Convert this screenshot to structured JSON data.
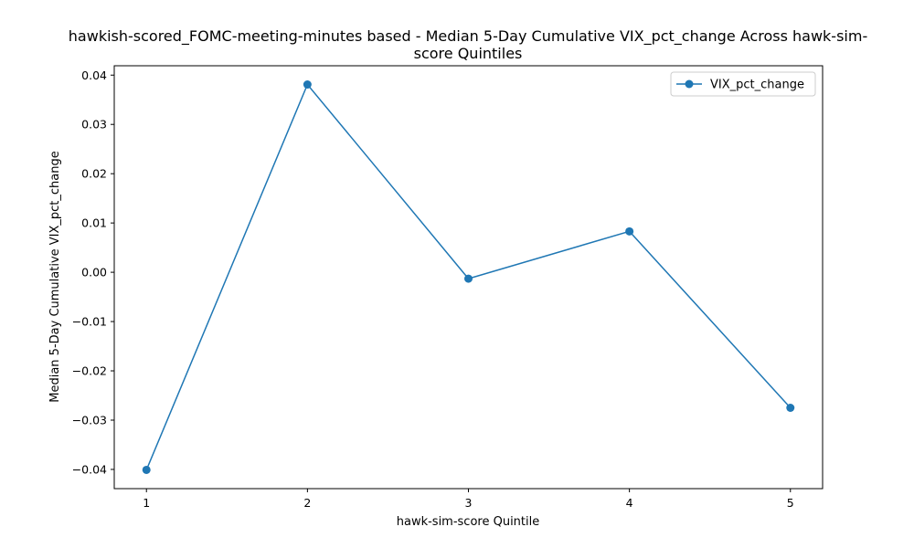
{
  "chart_data": {
    "type": "line",
    "title_lines": [
      "hawkish-scored_FOMC-meeting-minutes based - Median 5-Day Cumulative VIX_pct_change Across hawk-sim-",
      "score Quintiles"
    ],
    "xlabel": "hawk-sim-score Quintile",
    "ylabel": "Median 5-Day Cumulative VIX_pct_change",
    "x": [
      1,
      2,
      3,
      4,
      5
    ],
    "x_tick_labels": [
      "1",
      "2",
      "3",
      "4",
      "5"
    ],
    "xlim": [
      0.8,
      5.2
    ],
    "ylim": [
      -0.0439,
      0.0419
    ],
    "y_ticks": [
      -0.04,
      -0.03,
      -0.02,
      -0.01,
      0.0,
      0.01,
      0.02,
      0.03,
      0.04
    ],
    "y_tick_labels": [
      "−0.04",
      "−0.03",
      "−0.02",
      "−0.01",
      "0.00",
      "0.01",
      "0.02",
      "0.03",
      "0.04"
    ],
    "series": [
      {
        "name": "VIX_pct_change",
        "values": [
          -0.0401,
          0.0381,
          -0.0013,
          0.0083,
          -0.0275
        ],
        "color": "#1f77b4",
        "marker": "circle"
      }
    ],
    "legend_position": "top-right",
    "grid": false
  }
}
